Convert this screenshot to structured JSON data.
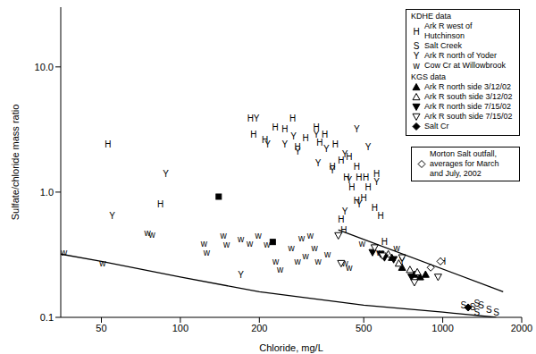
{
  "chart_data": {
    "type": "scatter",
    "x_label": "Chloride, mg/L",
    "y_label": "Sulfate/chloride mass ratio",
    "log": true,
    "grid": false,
    "legend": "top-right",
    "xlim": [
      35,
      2000
    ],
    "xticks": [
      50,
      100,
      200,
      500,
      1000,
      2000
    ],
    "ylim": [
      0.1,
      30
    ],
    "yticks": [
      0.1,
      {
        "value": 1,
        "label": "1.0"
      },
      {
        "value": 10,
        "label": "10.0"
      }
    ],
    "series": [
      {
        "name": "Ark R west of Hutchinson",
        "group": "KDHE data",
        "marker": "H",
        "color": "#000000",
        "x": [
          53,
          84,
          185,
          190,
          230,
          268,
          300,
          330,
          355,
          340,
          390,
          410,
          380,
          430,
          440,
          470,
          450,
          480,
          500,
          510,
          520,
          550,
          560,
          580,
          600,
          470,
          410,
          420,
          250,
          210,
          280,
          1000
        ],
        "values": [
          2.4,
          0.8,
          3.9,
          2.9,
          3.3,
          3.9,
          2.7,
          3.3,
          2.9,
          2.5,
          2.4,
          1.8,
          1.6,
          1.3,
          1.9,
          1.6,
          1.1,
          1.3,
          0.9,
          1.3,
          1.1,
          0.75,
          1.4,
          0.65,
          0.4,
          0.85,
          0.6,
          0.5,
          3.2,
          2.6,
          2.3,
          0.28
        ]
      },
      {
        "name": "Salt Creek",
        "group": "KDHE data",
        "marker": "S",
        "color": "#000000",
        "x": [
          1200,
          1300,
          1350,
          1400,
          1500,
          1600,
          1350
        ],
        "values": [
          0.125,
          0.12,
          0.11,
          0.125,
          0.115,
          0.11,
          0.13
        ]
      },
      {
        "name": "Ark R north of Yoder",
        "group": "KDHE data",
        "marker": "Y",
        "color": "#000000",
        "x": [
          55,
          88,
          195,
          215,
          250,
          270,
          280,
          335,
          380,
          424,
          470,
          520,
          440,
          480,
          424,
          560,
          170,
          700,
          360,
          330
        ],
        "values": [
          0.65,
          1.4,
          3.9,
          2.4,
          2.4,
          2.8,
          2.1,
          1.7,
          1.5,
          2.0,
          3.2,
          2.3,
          1.25,
          0.8,
          0.7,
          1.2,
          0.22,
          0.28,
          2.2,
          2.9
        ]
      },
      {
        "name": "Cow Cr at Willowbrook",
        "group": "KDHE data",
        "marker": "w",
        "color": "#000000",
        "x": [
          36,
          50.5,
          75,
          78,
          123,
          126,
          146,
          150,
          170,
          184,
          198,
          214,
          231,
          240,
          265,
          280,
          290,
          300,
          325,
          335,
          364,
          424,
          440,
          493,
          574,
          668,
          313
        ],
        "values": [
          0.33,
          0.27,
          0.47,
          0.46,
          0.39,
          0.33,
          0.45,
          0.38,
          0.42,
          0.39,
          0.45,
          0.38,
          0.28,
          0.24,
          0.36,
          0.28,
          0.43,
          0.31,
          0.36,
          0.28,
          0.32,
          0.27,
          0.25,
          0.39,
          0.33,
          0.36,
          0.45
        ]
      },
      {
        "name": "Ark R north side 3/12/02",
        "group": "KGS data",
        "marker": "triangle-up",
        "color": "#000000",
        "x": [
          640,
          700,
          780,
          820,
          860
        ],
        "values": [
          0.3,
          0.25,
          0.22,
          0.21,
          0.22
        ]
      },
      {
        "name": "Ark R south side 3/12/02",
        "group": "KGS data",
        "marker": "triangle-up-open",
        "color": "#000000",
        "x": [
          620,
          680,
          750,
          800
        ],
        "values": [
          0.32,
          0.27,
          0.24,
          0.23
        ]
      },
      {
        "name": "Ark R north side 7/15/02",
        "group": "KGS data",
        "marker": "triangle-down",
        "color": "#000000",
        "x": [
          540,
          580,
          600,
          650,
          760
        ],
        "values": [
          0.33,
          0.32,
          0.3,
          0.29,
          0.21
        ]
      },
      {
        "name": "Ark R south side 7/15/02",
        "group": "KGS data",
        "marker": "triangle-down-open",
        "color": "#000000",
        "x": [
          550,
          590,
          700,
          780,
          960,
          400,
          410
        ],
        "values": [
          0.36,
          0.31,
          0.3,
          0.19,
          0.21,
          0.45,
          0.27
        ]
      },
      {
        "name": "Salt Cr",
        "group": "KGS data",
        "marker": "diamond",
        "color": "#000000",
        "x": [
          1250
        ],
        "values": [
          0.12
        ]
      },
      {
        "name": "Morton Salt outfall, averages for March and July, 2002",
        "marker": "diamond-open",
        "color": "#000000",
        "x": [
          980,
          900
        ],
        "values": [
          0.28,
          0.25
        ]
      },
      {
        "marker": "square",
        "color": "#000000",
        "x": [
          140,
          225
        ],
        "values": [
          0.92,
          0.4
        ]
      },
      {
        "type": "line",
        "color": "#000000",
        "x": [
          35,
          50,
          100,
          200,
          500,
          1000,
          1600
        ],
        "values": [
          0.32,
          0.28,
          0.21,
          0.16,
          0.125,
          0.11,
          0.1
        ]
      },
      {
        "type": "line",
        "color": "#000000",
        "x": [
          400,
          1700
        ],
        "values": [
          0.5,
          0.16
        ]
      }
    ]
  }
}
